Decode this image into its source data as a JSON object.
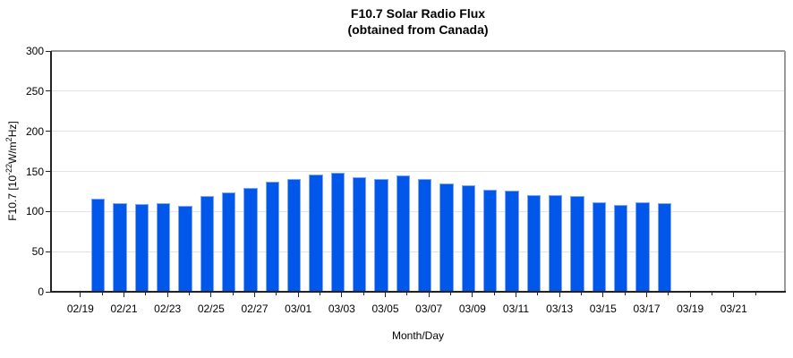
{
  "chart_data": {
    "type": "bar",
    "title": "F10.7 Solar Radio Flux",
    "subtitle": "(obtained from Canada)",
    "xlabel": "Month/Day",
    "ylabel": {
      "base": "F10.7 [10",
      "sup1": "-22",
      "mid": "W/m",
      "sup2": "2",
      "end": "Hz]"
    },
    "categories": [
      "02/20",
      "02/21",
      "02/22",
      "02/23",
      "02/24",
      "02/25",
      "02/26",
      "02/27",
      "02/28",
      "03/01",
      "03/02",
      "03/03",
      "03/04",
      "03/05",
      "03/06",
      "03/07",
      "03/08",
      "03/09",
      "03/10",
      "03/11",
      "03/12",
      "03/13",
      "03/14",
      "03/15",
      "03/16",
      "03/17",
      "03/18"
    ],
    "values": [
      116,
      110,
      109,
      110,
      107,
      119,
      124,
      129,
      137,
      140,
      146,
      148,
      143,
      140,
      145,
      141,
      135,
      133,
      127,
      126,
      121,
      120,
      119,
      111,
      108,
      111,
      110
    ],
    "ylim": [
      0,
      300
    ],
    "yticks": [
      0,
      50,
      100,
      150,
      200,
      250,
      300
    ],
    "x_major_tick_labels": [
      "02/19",
      "02/21",
      "02/23",
      "02/25",
      "02/27",
      "03/01",
      "03/03",
      "03/05",
      "03/07",
      "03/09",
      "03/11",
      "03/13",
      "03/15",
      "03/17",
      "03/19",
      "03/21"
    ],
    "x_axis": {
      "first_tick_day_index": 0,
      "last_tick_day_index": 31,
      "major_every": 2,
      "first_bar_day_index": 1,
      "domain": [
        -1.35,
        32.35
      ]
    },
    "grid": true,
    "legend": null,
    "colors": {
      "bar_fill": "#0057EA",
      "bar_border": "#7FA6EF",
      "grid": "#E3E3E3",
      "axis_dark": "#222222",
      "axis_light": "#999999",
      "text": "#000000"
    }
  }
}
